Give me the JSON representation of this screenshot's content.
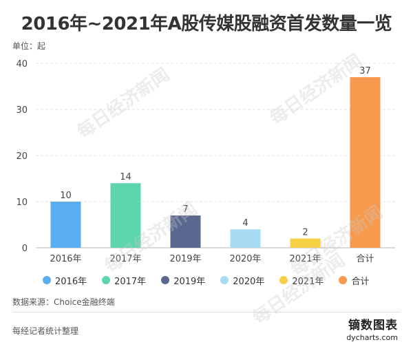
{
  "title": "2016年~2021年A股传媒股融资首发数量一览",
  "unit_label": "单位：起",
  "source": "数据来源：Choice金融终端",
  "footer_note": "每经记者统计整理",
  "brand": {
    "name": "镝数图表",
    "domain": "dycharts.com"
  },
  "watermark": "每日经济新闻",
  "chart_data": {
    "type": "bar",
    "categories": [
      "2016年",
      "2017年",
      "2019年",
      "2020年",
      "2021年",
      "合计"
    ],
    "values": [
      10,
      14,
      7,
      4,
      2,
      37
    ],
    "colors": [
      "#5aaef0",
      "#5ed6ab",
      "#5a6890",
      "#a8dcf5",
      "#f8d046",
      "#f79a4e"
    ],
    "title": "2016年~2021年A股传媒股融资首发数量一览",
    "ylabel": "单位：起",
    "ylim": [
      0,
      40
    ],
    "yticks": [
      0,
      10,
      20,
      30,
      40
    ],
    "grid": true,
    "legend": "bottom",
    "data_labels": true
  }
}
